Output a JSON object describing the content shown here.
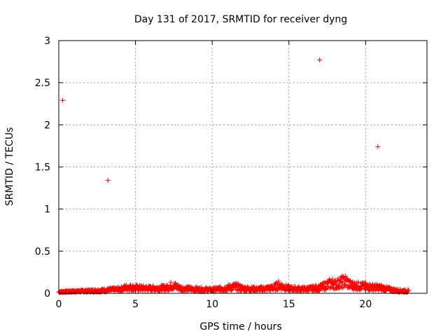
{
  "chart_data": {
    "type": "scatter",
    "title": "Day 131 of 2017, SRMTID for receiver dyng",
    "xlabel": "GPS time / hours",
    "ylabel": "SRMTID / TECUs",
    "xlim": [
      0,
      24
    ],
    "ylim": [
      0,
      3
    ],
    "xticks": [
      0,
      5,
      10,
      15,
      20
    ],
    "yticks": [
      0,
      0.5,
      1,
      1.5,
      2,
      2.5,
      3
    ],
    "grid": true,
    "marker": "+",
    "series_color": "#ff0000",
    "outliers": [
      {
        "x": 0.25,
        "y": 2.29
      },
      {
        "x": 3.2,
        "y": 1.34
      },
      {
        "x": 17.0,
        "y": 2.77
      },
      {
        "x": 20.8,
        "y": 1.74
      }
    ],
    "baseline_profile": {
      "x_range": [
        0,
        22.8
      ],
      "note": "dense band of points near zero",
      "x": [
        0,
        1,
        2,
        3,
        4,
        4.5,
        5,
        6,
        7,
        7.4,
        8,
        9,
        10,
        11,
        11.5,
        12,
        13,
        14,
        14.3,
        15,
        16,
        17,
        17.8,
        18,
        18.7,
        19,
        20,
        21,
        22,
        22.8
      ],
      "y": [
        0.02,
        0.03,
        0.035,
        0.045,
        0.06,
        0.09,
        0.08,
        0.07,
        0.08,
        0.12,
        0.07,
        0.06,
        0.05,
        0.08,
        0.1,
        0.07,
        0.06,
        0.08,
        0.12,
        0.07,
        0.06,
        0.08,
        0.15,
        0.13,
        0.18,
        0.12,
        0.1,
        0.08,
        0.04,
        0.03
      ]
    }
  }
}
